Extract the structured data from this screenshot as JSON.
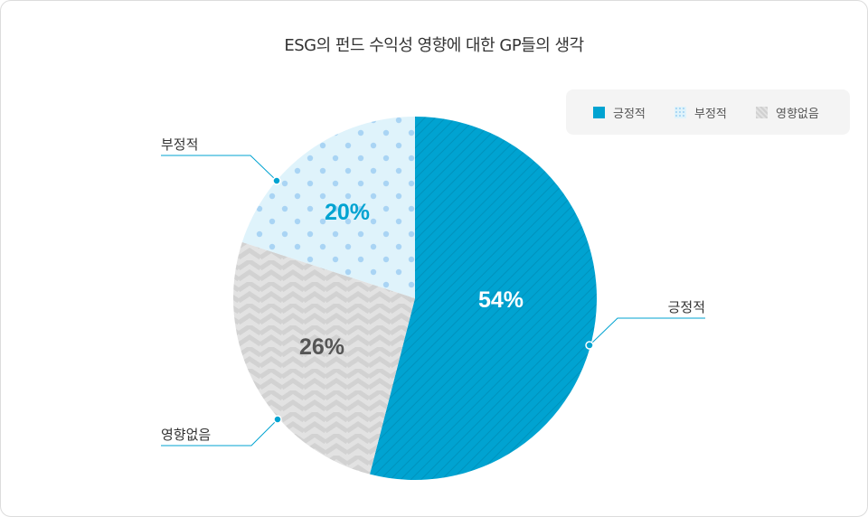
{
  "chart_data": {
    "type": "pie",
    "title": "ESG의 펀드 수익성 영향에 대한 GP들의 생각",
    "categories": [
      "긍정적",
      "부정적",
      "영향없음"
    ],
    "values": [
      54,
      20,
      26
    ],
    "value_labels": [
      "54%",
      "20%",
      "26%"
    ],
    "colors": [
      "#00a3d1",
      "#dff3fb",
      "#dadada"
    ],
    "legend_position": "top-right"
  }
}
